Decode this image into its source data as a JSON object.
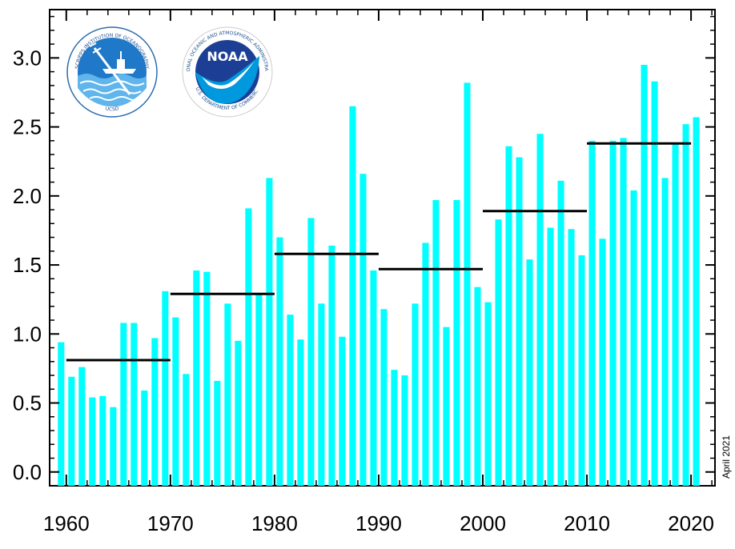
{
  "chart_data": {
    "type": "bar",
    "title": "",
    "xlabel": "",
    "ylabel": "",
    "note": "April 2021",
    "bar_color": "#00ffff",
    "mean_line_color": "#000000",
    "xlim": [
      1958.4,
      2022.3
    ],
    "ylim": [
      -0.1,
      3.35
    ],
    "x_ticks": [
      "1960",
      "1970",
      "1980",
      "1990",
      "2000",
      "2010",
      "2020"
    ],
    "y_ticks": [
      "0.0",
      "0.5",
      "1.0",
      "1.5",
      "2.0",
      "2.5",
      "3.0"
    ],
    "years": [
      1959,
      1960,
      1961,
      1962,
      1963,
      1964,
      1965,
      1966,
      1967,
      1968,
      1969,
      1970,
      1971,
      1972,
      1973,
      1974,
      1975,
      1976,
      1977,
      1978,
      1979,
      1980,
      1981,
      1982,
      1983,
      1984,
      1985,
      1986,
      1987,
      1988,
      1989,
      1990,
      1991,
      1992,
      1993,
      1994,
      1995,
      1996,
      1997,
      1998,
      1999,
      2000,
      2001,
      2002,
      2003,
      2004,
      2005,
      2006,
      2007,
      2008,
      2009,
      2010,
      2011,
      2012,
      2013,
      2014,
      2015,
      2016,
      2017,
      2018,
      2019,
      2020
    ],
    "values": [
      0.94,
      0.69,
      0.76,
      0.54,
      0.55,
      0.47,
      1.08,
      1.08,
      0.59,
      0.97,
      1.31,
      1.12,
      0.71,
      1.46,
      1.45,
      0.66,
      1.22,
      0.95,
      1.91,
      1.29,
      2.13,
      1.7,
      1.14,
      0.96,
      1.84,
      1.22,
      1.64,
      0.98,
      2.65,
      2.16,
      1.46,
      1.18,
      0.74,
      0.7,
      1.22,
      1.66,
      1.97,
      1.05,
      1.97,
      2.82,
      1.34,
      1.23,
      1.83,
      2.36,
      2.28,
      1.54,
      2.45,
      1.77,
      2.11,
      1.76,
      1.57,
      2.4,
      1.69,
      2.4,
      2.42,
      2.04,
      2.95,
      2.83,
      2.13,
      2.38,
      2.52,
      2.57
    ],
    "decade_means": [
      {
        "start": 1960,
        "end": 1970,
        "value": 0.81
      },
      {
        "start": 1970,
        "end": 1980,
        "value": 1.29
      },
      {
        "start": 1980,
        "end": 1990,
        "value": 1.58
      },
      {
        "start": 1990,
        "end": 2000,
        "value": 1.47
      },
      {
        "start": 2000,
        "end": 2010,
        "value": 1.89
      },
      {
        "start": 2010,
        "end": 2020,
        "value": 2.38
      }
    ]
  },
  "logos": {
    "scripps_text": "SCRIPPS INSTITUTION OF OCEANOGRAPHY",
    "scripps_bottom": "UCSD",
    "noaa_label": "NOAA",
    "noaa_top_text": "NATIONAL OCEANIC AND ATMOSPHERIC ADMINISTRATION",
    "noaa_bottom_text": "U.S. DEPARTMENT OF COMMERCE"
  }
}
